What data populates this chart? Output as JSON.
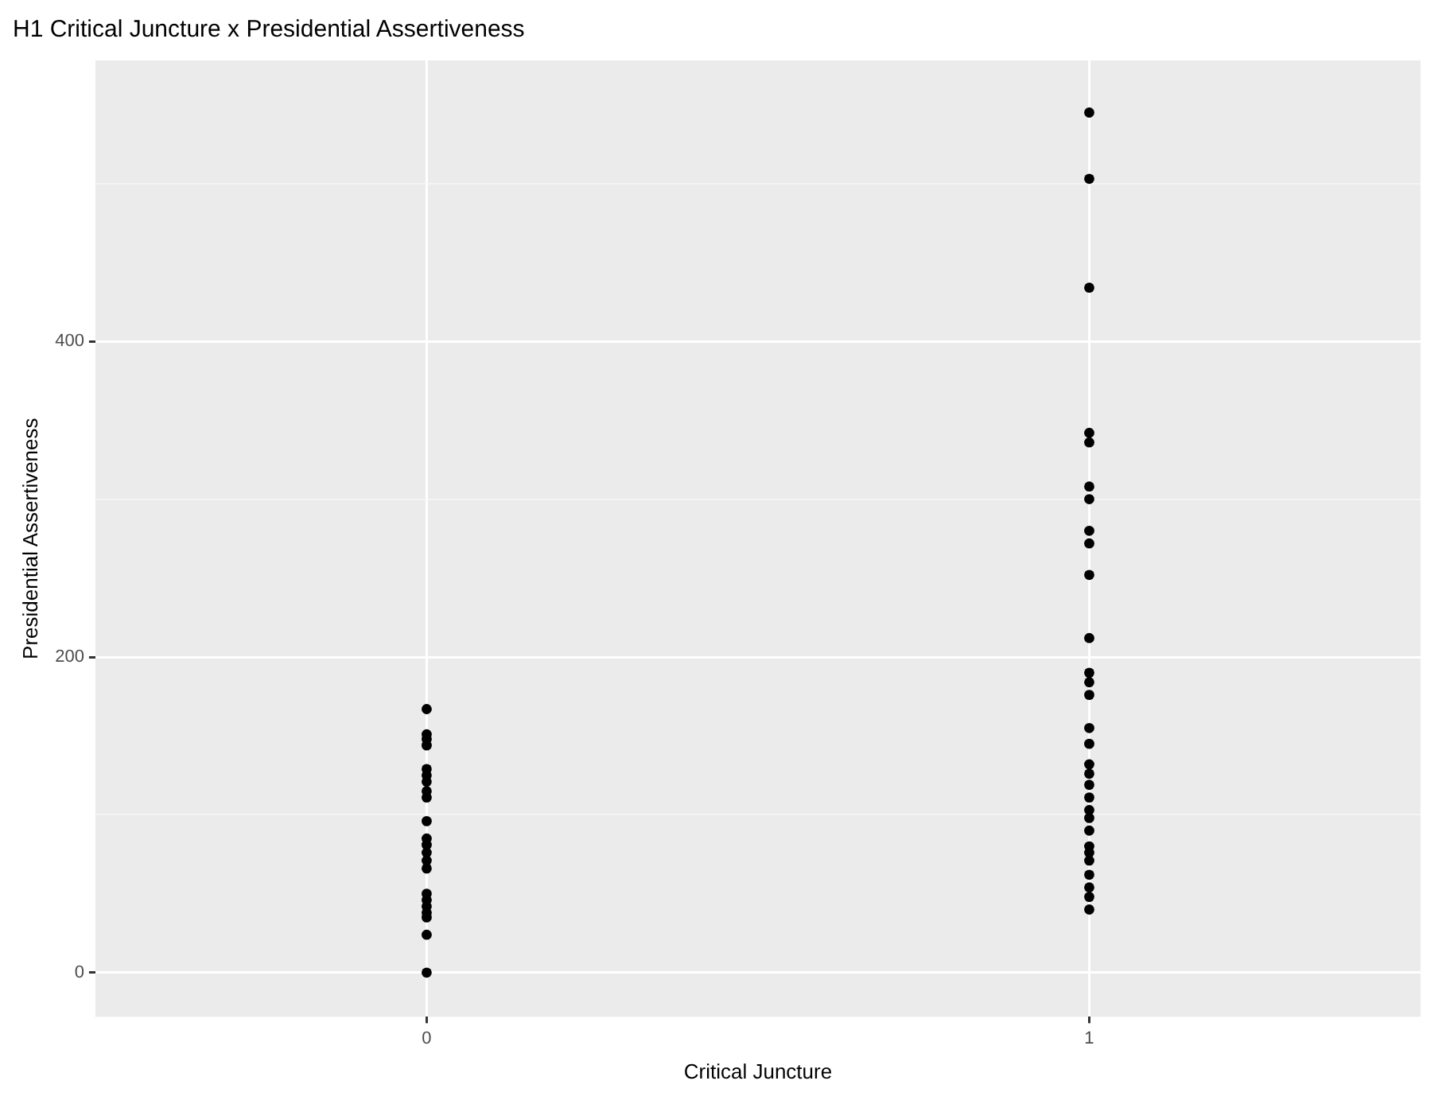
{
  "chart_data": {
    "type": "scatter",
    "title": "H1 Critical Juncture x Presidential Assertiveness",
    "xlabel": "Critical Juncture",
    "ylabel": "Presidential Assertiveness",
    "categories": [
      "0",
      "1"
    ],
    "ylim": [
      -28,
      578
    ],
    "yticks": [
      0,
      {
        "value": 100,
        "label": null
      },
      200,
      {
        "value": 300,
        "label": null
      },
      400,
      {
        "value": 500,
        "label": null
      }
    ],
    "grid": true,
    "marker": "circle",
    "legend": false,
    "series": [
      {
        "color": "#000000",
        "x": [
          "0",
          "0",
          "0",
          "0",
          "0",
          "0",
          "0",
          "0",
          "0",
          "0",
          "0",
          "0",
          "0",
          "0",
          "0",
          "0",
          "0",
          "0",
          "0",
          "0",
          "0",
          "0"
        ],
        "values": [
          167,
          151,
          148,
          144,
          129,
          125,
          121,
          115,
          111,
          96,
          85,
          81,
          76,
          71,
          66,
          50,
          46,
          42,
          38,
          35,
          24,
          0
        ]
      },
      {
        "color": "#000000",
        "x": [
          "1",
          "1",
          "1",
          "1",
          "1",
          "1",
          "1",
          "1",
          "1",
          "1",
          "1",
          "1",
          "1",
          "1",
          "1",
          "1",
          "1",
          "1",
          "1",
          "1",
          "1",
          "1",
          "1",
          "1",
          "1",
          "1",
          "1",
          "1",
          "1",
          "1"
        ],
        "values": [
          545,
          503,
          434,
          342,
          336,
          308,
          300,
          280,
          272,
          252,
          212,
          190,
          184,
          176,
          155,
          145,
          132,
          126,
          119,
          111,
          103,
          98,
          90,
          80,
          76,
          71,
          62,
          54,
          48,
          40
        ]
      }
    ]
  }
}
